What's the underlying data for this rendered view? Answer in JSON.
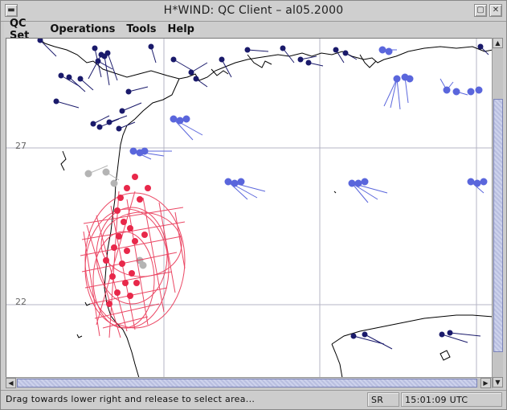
{
  "window": {
    "title": "H*WIND: QC Client – al05.2000",
    "buttons": {
      "menu": "▬",
      "minimize": "▢",
      "close": "✕"
    }
  },
  "menubar": {
    "items": [
      "QC Set",
      "Operations",
      "Tools",
      "Help"
    ]
  },
  "map": {
    "lat_labels": [
      "27",
      "22"
    ],
    "colors": {
      "coast": "#000000",
      "grid": "#b4b4c4",
      "obs_dark": "#1a1a6b",
      "obs_light": "#5a66dc",
      "obs_red": "#e8284a",
      "obs_gray": "#b4b4b4"
    }
  },
  "statusbar": {
    "message": "Drag towards lower right and release to select area...",
    "mode": "SR",
    "time": "15:01:09 UTC"
  },
  "scroll": {
    "up": "▲",
    "down": "▼",
    "left": "◀",
    "right": "▶"
  }
}
